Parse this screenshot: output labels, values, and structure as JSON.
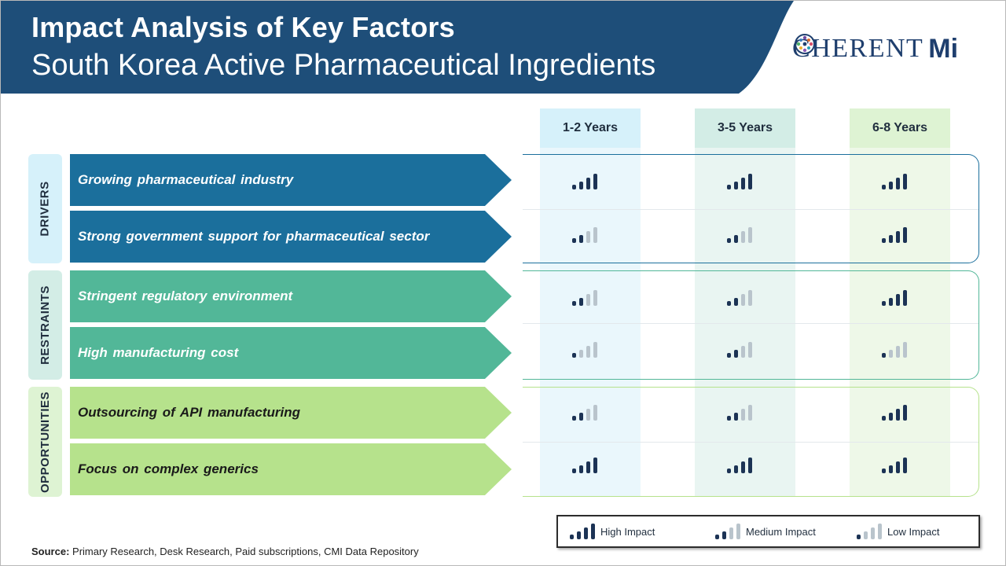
{
  "header": {
    "title": "Impact Analysis of Key Factors",
    "subtitle": "South Korea Active Pharmaceutical Ingredients",
    "logo_text": "C HERENT",
    "logo_suffix": "Mi",
    "logo_full": "COHERENT Mi"
  },
  "columns": [
    "1-2 Years",
    "3-5 Years",
    "6-8 Years"
  ],
  "colors": {
    "header_bg": "#1e4e79",
    "drivers": "#1b6f9c",
    "restraints": "#52b798",
    "opportunities": "#b6e28c",
    "bar_on": "#1c3355",
    "bar_off": "#b9c4cc"
  },
  "groups": [
    {
      "label": "DRIVERS",
      "rows": [
        {
          "factor": "Growing pharmaceutical  industry",
          "impact": [
            "high",
            "high",
            "high"
          ]
        },
        {
          "factor": "Strong  government  support  for  pharmaceutical  sector",
          "impact": [
            "medium",
            "medium",
            "high"
          ]
        }
      ]
    },
    {
      "label": "RESTRAINTS",
      "rows": [
        {
          "factor": "Stringent  regulatory  environment",
          "impact": [
            "medium",
            "medium",
            "high"
          ]
        },
        {
          "factor": "High  manufacturing  cost",
          "impact": [
            "low",
            "medium",
            "low"
          ]
        }
      ]
    },
    {
      "label": "OPPORTUNITIES",
      "rows": [
        {
          "factor": "Outsourcing  of  API  manufacturing",
          "impact": [
            "medium",
            "medium",
            "high"
          ]
        },
        {
          "factor": "Focus  on  complex  generics",
          "impact": [
            "high",
            "high",
            "high"
          ]
        }
      ]
    }
  ],
  "legend": {
    "high": "High Impact",
    "medium": "Medium Impact",
    "low": "Low Impact"
  },
  "source": {
    "label": "Source:",
    "text": " Primary Research, Desk Research, Paid subscriptions, CMI Data Repository"
  }
}
